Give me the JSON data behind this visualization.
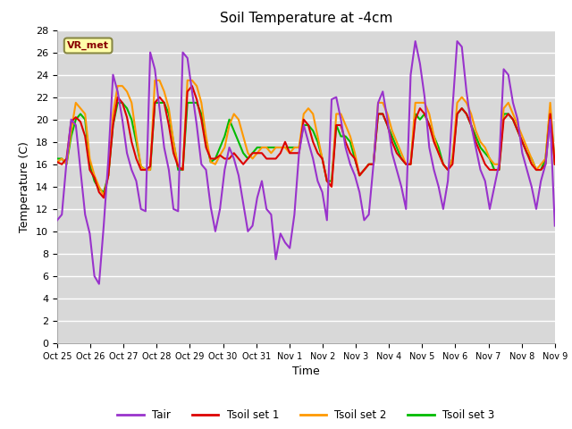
{
  "title": "Soil Temperature at -4cm",
  "xlabel": "Time",
  "ylabel": "Temperature (C)",
  "ylim": [
    0,
    28
  ],
  "xlim": [
    0,
    15
  ],
  "figure_bg": "#ffffff",
  "plot_bg_color": "#d8d8d8",
  "grid_color": "#ffffff",
  "annotation_text": "VR_met",
  "annotation_bg": "#ffffaa",
  "annotation_fg": "#880000",
  "annotation_border": "#888844",
  "line_colors": {
    "Tair": "#9933cc",
    "Tsoil set 1": "#dd0000",
    "Tsoil set 2": "#ff9900",
    "Tsoil set 3": "#00bb00"
  },
  "tick_labels": [
    "Oct 25",
    "Oct 26",
    "Oct 27",
    "Oct 28",
    "Oct 29",
    "Oct 30",
    "Oct 31",
    "Nov 1",
    "Nov 2",
    "Nov 3",
    "Nov 4",
    "Nov 5",
    "Nov 6",
    "Nov 7",
    "Nov 8",
    "Nov 9"
  ],
  "Tair": [
    11.0,
    11.5,
    16.2,
    20.0,
    19.5,
    15.5,
    11.5,
    9.8,
    6.0,
    5.3,
    10.5,
    16.5,
    24.0,
    22.5,
    20.0,
    17.0,
    15.5,
    14.5,
    12.0,
    11.8,
    26.0,
    24.5,
    21.0,
    17.5,
    15.5,
    12.0,
    11.8,
    26.0,
    25.5,
    22.5,
    19.5,
    16.0,
    15.5,
    12.2,
    10.0,
    12.0,
    15.5,
    17.5,
    16.5,
    15.0,
    12.5,
    10.0,
    10.5,
    13.0,
    14.5,
    12.0,
    11.5,
    7.5,
    9.8,
    9.0,
    8.5,
    11.5,
    17.0,
    19.5,
    18.0,
    16.5,
    14.5,
    13.5,
    11.0,
    21.8,
    22.0,
    20.0,
    17.5,
    16.0,
    15.0,
    13.5,
    11.0,
    11.5,
    16.0,
    21.5,
    22.5,
    20.0,
    17.0,
    15.5,
    14.0,
    12.0,
    24.0,
    27.0,
    25.0,
    22.0,
    17.5,
    15.5,
    14.0,
    12.0,
    14.5,
    21.0,
    27.0,
    26.5,
    22.5,
    19.5,
    17.5,
    15.5,
    14.5,
    12.0,
    14.0,
    16.0,
    24.5,
    24.0,
    21.5,
    20.0,
    17.0,
    15.5,
    14.0,
    12.0,
    14.5,
    16.0,
    20.0,
    10.5
  ],
  "Tsoil1": [
    16.2,
    16.0,
    16.5,
    19.8,
    20.2,
    19.8,
    18.5,
    15.5,
    14.8,
    13.5,
    13.0,
    15.0,
    19.5,
    22.0,
    21.5,
    20.2,
    18.0,
    16.5,
    15.5,
    15.5,
    15.8,
    21.5,
    22.0,
    21.5,
    19.5,
    17.0,
    15.8,
    15.5,
    22.5,
    23.0,
    21.8,
    20.0,
    17.5,
    16.5,
    16.5,
    16.8,
    16.5,
    16.5,
    17.0,
    16.5,
    16.0,
    16.5,
    17.0,
    17.0,
    17.0,
    16.5,
    16.5,
    16.5,
    17.0,
    18.0,
    17.0,
    17.0,
    17.0,
    20.0,
    19.5,
    18.0,
    17.0,
    16.5,
    14.5,
    14.0,
    19.5,
    19.5,
    18.0,
    17.0,
    16.5,
    15.0,
    15.5,
    16.0,
    16.0,
    20.5,
    20.5,
    19.5,
    18.0,
    17.0,
    16.5,
    16.0,
    16.0,
    20.0,
    21.0,
    20.5,
    19.5,
    18.0,
    17.0,
    16.0,
    15.5,
    16.0,
    20.5,
    21.0,
    20.5,
    19.5,
    18.0,
    17.0,
    16.0,
    15.5,
    15.5,
    15.5,
    20.0,
    20.5,
    20.0,
    19.0,
    18.0,
    17.0,
    16.0,
    15.5,
    15.5,
    16.0,
    20.5,
    16.0
  ],
  "Tsoil2": [
    16.2,
    16.5,
    16.0,
    19.0,
    21.5,
    21.0,
    20.5,
    16.5,
    15.0,
    14.0,
    13.2,
    15.0,
    20.5,
    23.0,
    23.0,
    22.5,
    21.5,
    18.5,
    15.8,
    15.5,
    15.5,
    23.5,
    23.5,
    22.5,
    21.0,
    18.0,
    15.8,
    15.5,
    23.5,
    23.5,
    23.0,
    21.5,
    18.5,
    16.2,
    16.0,
    16.8,
    17.5,
    19.5,
    20.5,
    20.0,
    18.5,
    17.0,
    16.5,
    17.0,
    17.5,
    17.5,
    17.0,
    17.5,
    17.5,
    17.5,
    17.0,
    17.5,
    17.5,
    20.5,
    21.0,
    20.5,
    18.5,
    16.5,
    14.5,
    14.0,
    20.5,
    20.5,
    19.5,
    18.5,
    17.0,
    15.0,
    15.5,
    16.0,
    16.0,
    21.5,
    21.5,
    20.5,
    19.0,
    18.0,
    17.0,
    16.0,
    16.0,
    21.5,
    21.5,
    21.5,
    20.5,
    18.5,
    17.0,
    16.0,
    15.5,
    16.5,
    21.5,
    22.0,
    21.5,
    20.5,
    19.0,
    18.0,
    17.5,
    16.5,
    16.0,
    16.0,
    21.0,
    21.5,
    20.5,
    19.5,
    18.5,
    17.5,
    16.5,
    15.5,
    16.0,
    16.5,
    21.5,
    16.0
  ],
  "Tsoil3": [
    16.5,
    16.5,
    16.0,
    18.5,
    20.0,
    20.5,
    20.0,
    16.0,
    14.5,
    13.8,
    13.5,
    15.0,
    19.5,
    21.5,
    21.5,
    21.0,
    20.0,
    18.0,
    15.8,
    15.5,
    15.5,
    21.5,
    21.5,
    21.5,
    20.5,
    18.0,
    15.5,
    15.5,
    21.5,
    21.5,
    21.5,
    20.5,
    18.0,
    16.2,
    16.5,
    17.5,
    18.5,
    20.0,
    19.0,
    18.0,
    17.0,
    16.5,
    17.0,
    17.5,
    17.5,
    17.5,
    17.5,
    17.5,
    17.5,
    17.5,
    17.5,
    17.5,
    17.5,
    19.5,
    19.5,
    19.0,
    18.0,
    16.5,
    14.5,
    14.5,
    19.5,
    18.5,
    18.5,
    18.0,
    16.5,
    15.0,
    15.5,
    16.0,
    16.0,
    20.5,
    20.5,
    19.5,
    18.5,
    17.5,
    16.5,
    16.0,
    16.0,
    20.5,
    20.0,
    20.5,
    19.5,
    18.5,
    17.5,
    16.0,
    15.5,
    16.5,
    20.5,
    21.0,
    20.5,
    19.5,
    18.5,
    17.5,
    17.0,
    16.5,
    15.5,
    15.5,
    20.5,
    20.5,
    20.0,
    19.0,
    18.0,
    17.0,
    16.5,
    15.5,
    15.5,
    16.5,
    21.0,
    16.0
  ]
}
